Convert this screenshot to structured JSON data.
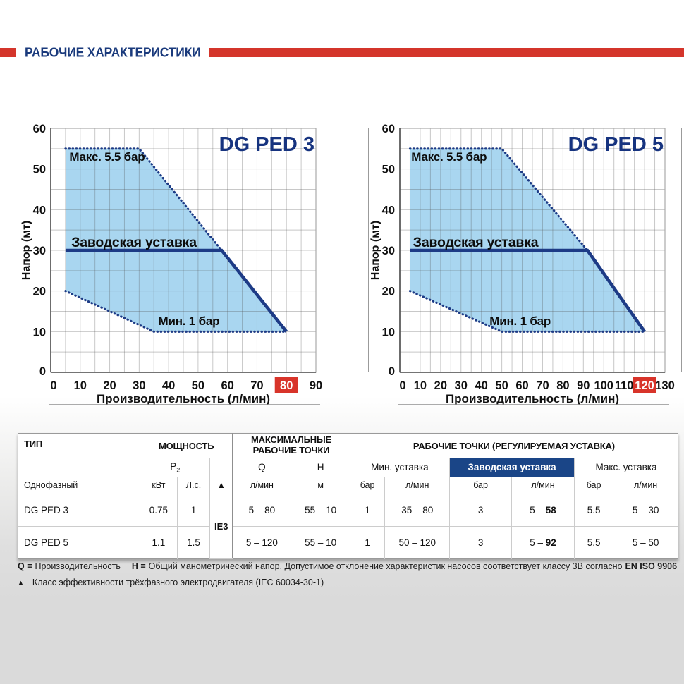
{
  "page": {
    "section_title": "РАБОЧИЕ ХАРАКТЕРИСТИКИ"
  },
  "colors": {
    "accent_red": "#d4352b",
    "curve_navy": "#1d3b86",
    "curve_fill": "#a9d6f0",
    "chart_title_blue": "#16337f",
    "factory_header_bg": "#1a4587"
  },
  "chart_data": [
    {
      "type": "area",
      "title": "DG PED 3",
      "xlabel": "Производительность (л/мин)",
      "ylabel": "Напор (мт)",
      "xlim": [
        0,
        90
      ],
      "ylim": [
        0,
        60
      ],
      "xtick_step": 10,
      "ytick_step": 10,
      "grid_step": 5,
      "highlighted_xtick": 80,
      "fill_color": "#a9d6f0",
      "line_color": "#1d3b86",
      "highlight_color": "#d8342a",
      "title_color": "#16337f",
      "envelope_polygon": [
        [
          5,
          55
        ],
        [
          30,
          55
        ],
        [
          58,
          30
        ],
        [
          80,
          10
        ],
        [
          35,
          10
        ],
        [
          5,
          20
        ]
      ],
      "max_curve_dotted": [
        [
          5,
          55
        ],
        [
          30,
          55
        ],
        [
          58,
          30
        ]
      ],
      "min_curve_dotted": [
        [
          5,
          20
        ],
        [
          35,
          10
        ],
        [
          80,
          10
        ]
      ],
      "factory_curve_solid": [
        [
          5,
          30
        ],
        [
          58,
          30
        ],
        [
          80,
          10
        ]
      ],
      "annotations": [
        {
          "text": "Макс. 5.5 бар",
          "x": 6.3,
          "y": 52,
          "kind": "limit"
        },
        {
          "text": "Заводская уставка",
          "x": 7,
          "y": 30.9,
          "kind": "setting"
        },
        {
          "text": "Мин. 1 бар",
          "x": 36.5,
          "y": 11.6,
          "kind": "limit"
        }
      ]
    },
    {
      "type": "area",
      "title": "DG PED 5",
      "xlabel": "Производительность (л/мин)",
      "ylabel": "Напор (мт)",
      "xlim": [
        0,
        130
      ],
      "ylim": [
        0,
        60
      ],
      "xtick_step": 10,
      "ytick_step": 10,
      "grid_step": 5,
      "highlighted_xtick": 120,
      "fill_color": "#a9d6f0",
      "line_color": "#1d3b86",
      "highlight_color": "#d8342a",
      "title_color": "#16337f",
      "envelope_polygon": [
        [
          5,
          55
        ],
        [
          50,
          55
        ],
        [
          92,
          30
        ],
        [
          120,
          10
        ],
        [
          50,
          10
        ],
        [
          5,
          20
        ]
      ],
      "max_curve_dotted": [
        [
          5,
          55
        ],
        [
          50,
          55
        ],
        [
          92,
          30
        ]
      ],
      "min_curve_dotted": [
        [
          5,
          20
        ],
        [
          50,
          10
        ],
        [
          120,
          10
        ]
      ],
      "factory_curve_solid": [
        [
          5,
          30
        ],
        [
          92,
          30
        ],
        [
          120,
          10
        ]
      ],
      "annotations": [
        {
          "text": "Макс. 5.5 бар",
          "x": 5.6,
          "y": 52,
          "kind": "limit"
        },
        {
          "text": "Заводская уставка",
          "x": 6.5,
          "y": 30.9,
          "kind": "setting"
        },
        {
          "text": "Мин. 1 бар",
          "x": 44,
          "y": 11.6,
          "kind": "limit"
        }
      ]
    }
  ],
  "table": {
    "group_headers": {
      "type": "ТИП",
      "power": "МОЩНОСТЬ",
      "max_points": "МАКСИМАЛЬНЫЕ РАБОЧИЕ ТОЧКИ",
      "working_points": "РАБОЧИЕ ТОЧКИ (РЕГУЛИРУЕМАЯ УСТАВКА)"
    },
    "sub_headers": {
      "p": "P",
      "p_sub": "2",
      "q": "Q",
      "h": "H",
      "min_setting": "Мин. уставка",
      "factory_setting": "Заводская уставка",
      "max_setting": "Макс. уставка"
    },
    "unit_headers": {
      "phase": "Однофазный",
      "kw": "кВт",
      "hp": "Л.с.",
      "triangle": "▲",
      "flow": "л/мин",
      "head": "м",
      "bar1": "бар",
      "flow1": "л/мин",
      "bar2": "бар",
      "flow2": "л/мин",
      "bar3": "бар",
      "flow3": "л/мин"
    },
    "efficiency_class": "IE3",
    "rows": [
      {
        "type": "DG PED 3",
        "kw": "0.75",
        "hp": "1",
        "q_range": "5 – 80",
        "h_range": "55 – 10",
        "min_bar": "1",
        "min_flow": "35 – 80",
        "factory_bar": "3",
        "factory_flow_prefix": "5 – ",
        "factory_flow_bold": "58",
        "max_bar": "5.5",
        "max_flow": "5 – 30"
      },
      {
        "type": "DG PED 5",
        "kw": "1.1",
        "hp": "1.5",
        "q_range": "5 – 120",
        "h_range": "55 – 10",
        "min_bar": "1",
        "min_flow": "50 – 120",
        "factory_bar": "3",
        "factory_flow_prefix": "5 – ",
        "factory_flow_bold": "92",
        "max_bar": "5.5",
        "max_flow": "5 – 50"
      }
    ]
  },
  "footnotes": {
    "line1": [
      {
        "text": "Q =",
        "bold": true
      },
      {
        "text": "Производительность",
        "bold": false
      },
      {
        "text": "H =",
        "bold": true
      },
      {
        "text": "Общий манометрический напор.  Допустимое отклонение характеристик насосов соответствует классу 3В согласно",
        "bold": false
      },
      {
        "text": "EN ISO 9906",
        "bold": true
      }
    ],
    "line2_marker": "▲",
    "line2": "Класс эффективности трёхфазного электродвигателя (IEC 60034-30-1)"
  }
}
